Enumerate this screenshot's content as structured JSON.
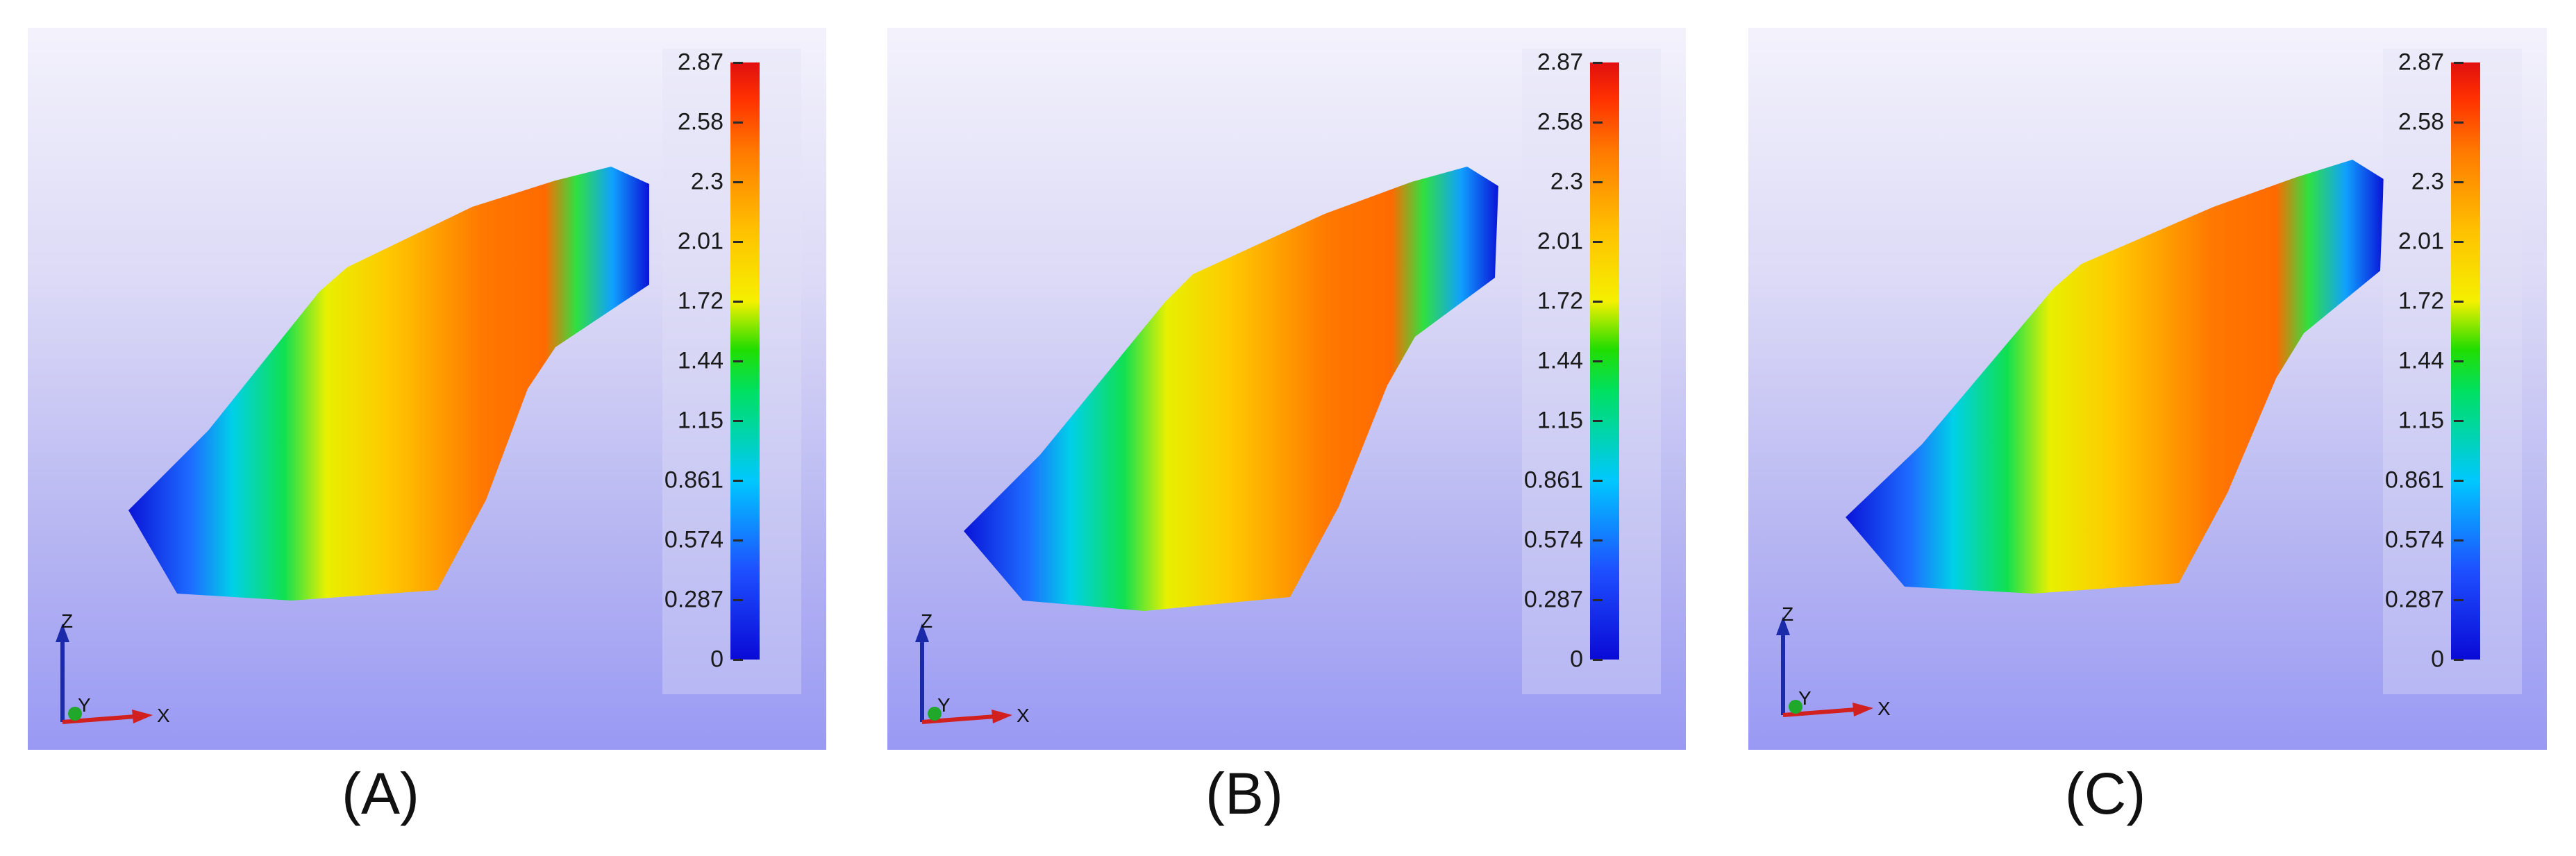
{
  "panels": [
    {
      "id": "a",
      "caption": "(A)"
    },
    {
      "id": "b",
      "caption": "(B)"
    },
    {
      "id": "c",
      "caption": "(C)"
    }
  ],
  "colorbar": {
    "ticks": [
      "2.87",
      "2.58",
      "2.3",
      "2.01",
      "1.72",
      "1.44",
      "1.15",
      "0.861",
      "0.574",
      "0.287",
      "0"
    ],
    "colors": [
      "#0a0ad6",
      "#1e50ff",
      "#00c8ff",
      "#00e060",
      "#f5f000",
      "#ff7a00",
      "#e01010"
    ]
  },
  "axes": {
    "z": "Z",
    "y": "Y",
    "x": "X"
  }
}
